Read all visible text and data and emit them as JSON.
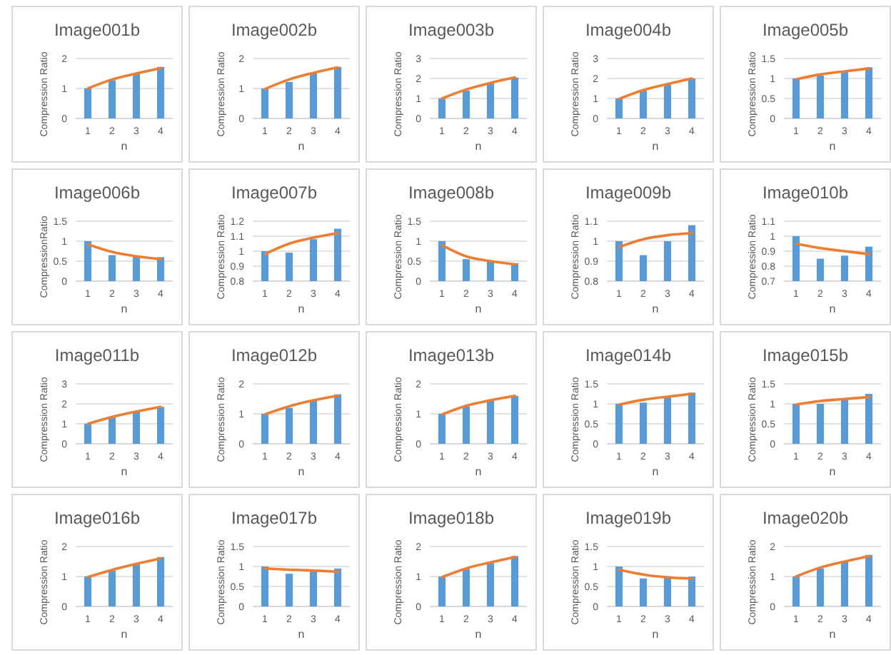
{
  "chart_data": [
    {
      "type": "bar",
      "title": "Image001b",
      "xlabel": "n",
      "ylabel": "Compression Ratio",
      "categories": [
        "1",
        "2",
        "3",
        "4"
      ],
      "ylim": [
        0,
        2
      ],
      "yticks": [
        0,
        1,
        2
      ],
      "grid": "y",
      "series": [
        {
          "color": "#5b9bd5",
          "values": [
            1,
            1.27,
            1.5,
            1.72
          ]
        },
        {
          "type": "line",
          "color": "#ed7d31",
          "x": [
            "1",
            "2",
            "3",
            "4"
          ],
          "values": [
            1.0,
            1.3,
            1.5,
            1.68
          ]
        }
      ]
    },
    {
      "type": "bar",
      "title": "Image002b",
      "xlabel": "n",
      "ylabel": "Compression Ratio",
      "categories": [
        "1",
        "2",
        "3",
        "4"
      ],
      "ylim": [
        0,
        2
      ],
      "yticks": [
        0,
        1,
        2
      ],
      "grid": "y",
      "series": [
        {
          "color": "#5b9bd5",
          "values": [
            1,
            1.22,
            1.5,
            1.72
          ]
        },
        {
          "type": "line",
          "color": "#ed7d31",
          "x": [
            "1",
            "2",
            "3",
            "4"
          ],
          "values": [
            0.98,
            1.3,
            1.52,
            1.7
          ]
        }
      ]
    },
    {
      "type": "bar",
      "title": "Image003b",
      "xlabel": "n",
      "ylabel": "Compression Ratio",
      "categories": [
        "1",
        "2",
        "3",
        "4"
      ],
      "ylim": [
        0,
        3
      ],
      "yticks": [
        0,
        1,
        2,
        3
      ],
      "grid": "y",
      "series": [
        {
          "color": "#5b9bd5",
          "values": [
            1,
            1.4,
            1.75,
            2.05
          ]
        },
        {
          "type": "line",
          "color": "#ed7d31",
          "x": [
            "1",
            "2",
            "3",
            "4"
          ],
          "values": [
            1.0,
            1.45,
            1.78,
            2.05
          ]
        }
      ]
    },
    {
      "type": "bar",
      "title": "Image004b",
      "xlabel": "n",
      "ylabel": "Compression Ratio",
      "categories": [
        "1",
        "2",
        "3",
        "4"
      ],
      "ylim": [
        0,
        3
      ],
      "yticks": [
        0,
        1,
        2,
        3
      ],
      "grid": "y",
      "series": [
        {
          "color": "#5b9bd5",
          "values": [
            1,
            1.4,
            1.7,
            2.0
          ]
        },
        {
          "type": "line",
          "color": "#ed7d31",
          "x": [
            "1",
            "2",
            "3",
            "4"
          ],
          "values": [
            0.98,
            1.42,
            1.72,
            2.0
          ]
        }
      ]
    },
    {
      "type": "bar",
      "title": "Image005b",
      "xlabel": "n",
      "ylabel": "Compression Ratio",
      "categories": [
        "1",
        "2",
        "3",
        "4"
      ],
      "ylim": [
        0,
        1.5
      ],
      "yticks": [
        0,
        0.5,
        1,
        1.5
      ],
      "grid": "y",
      "series": [
        {
          "color": "#5b9bd5",
          "values": [
            1,
            1.07,
            1.17,
            1.28
          ]
        },
        {
          "type": "line",
          "color": "#ed7d31",
          "x": [
            "1",
            "2",
            "3",
            "4"
          ],
          "values": [
            0.98,
            1.1,
            1.18,
            1.25
          ]
        }
      ]
    },
    {
      "type": "bar",
      "title": "Image006b",
      "xlabel": "n",
      "ylabel": "CompressionRatio",
      "categories": [
        "1",
        "2",
        "3",
        "4"
      ],
      "ylim": [
        0,
        1.5
      ],
      "yticks": [
        0,
        0.5,
        1,
        1.5
      ],
      "grid": "y",
      "series": [
        {
          "color": "#5b9bd5",
          "values": [
            1,
            0.65,
            0.62,
            0.6
          ]
        },
        {
          "type": "line",
          "color": "#ed7d31",
          "x": [
            "1",
            "2",
            "3",
            "4"
          ],
          "values": [
            0.92,
            0.73,
            0.62,
            0.55
          ]
        }
      ]
    },
    {
      "type": "bar",
      "title": "Image007b",
      "xlabel": "n",
      "ylabel": "Compression Ratio",
      "categories": [
        "1",
        "2",
        "3",
        "4"
      ],
      "ylim": [
        0.8,
        1.2
      ],
      "yticks": [
        0.8,
        0.9,
        1,
        1.1,
        1.2
      ],
      "grid": "y",
      "series": [
        {
          "color": "#5b9bd5",
          "values": [
            1.0,
            0.99,
            1.08,
            1.15
          ]
        },
        {
          "type": "line",
          "color": "#ed7d31",
          "x": [
            "1",
            "2",
            "3",
            "4"
          ],
          "values": [
            0.98,
            1.05,
            1.09,
            1.12
          ]
        }
      ]
    },
    {
      "type": "bar",
      "title": "Image008b",
      "xlabel": "n",
      "ylabel": "Compression Ratio",
      "categories": [
        "1",
        "2",
        "3",
        "4"
      ],
      "ylim": [
        0,
        1.5
      ],
      "yticks": [
        0,
        0.5,
        1,
        1.5
      ],
      "grid": "y",
      "series": [
        {
          "color": "#5b9bd5",
          "values": [
            1,
            0.55,
            0.5,
            0.45
          ]
        },
        {
          "type": "line",
          "color": "#ed7d31",
          "x": [
            "1",
            "2",
            "3",
            "4"
          ],
          "values": [
            0.9,
            0.62,
            0.5,
            0.42
          ]
        }
      ]
    },
    {
      "type": "bar",
      "title": "Image009b",
      "xlabel": "n",
      "ylabel": "Compression Ratio",
      "categories": [
        "1",
        "2",
        "3",
        "4"
      ],
      "ylim": [
        0.8,
        1.1
      ],
      "yticks": [
        0.8,
        0.9,
        1,
        1.1
      ],
      "grid": "y",
      "series": [
        {
          "color": "#5b9bd5",
          "values": [
            1.0,
            0.93,
            1.0,
            1.08
          ]
        },
        {
          "type": "line",
          "color": "#ed7d31",
          "x": [
            "1",
            "2",
            "3",
            "4"
          ],
          "values": [
            0.97,
            1.01,
            1.03,
            1.04
          ]
        }
      ]
    },
    {
      "type": "bar",
      "title": "Image010b",
      "xlabel": "n",
      "ylabel": "Compression Ratio",
      "categories": [
        "1",
        "2",
        "3",
        "4"
      ],
      "ylim": [
        0.7,
        1.1
      ],
      "yticks": [
        0.7,
        0.8,
        0.9,
        1,
        1.1
      ],
      "grid": "y",
      "series": [
        {
          "color": "#5b9bd5",
          "values": [
            1.0,
            0.85,
            0.87,
            0.93
          ]
        },
        {
          "type": "line",
          "color": "#ed7d31",
          "x": [
            "1",
            "2",
            "3",
            "4"
          ],
          "values": [
            0.95,
            0.92,
            0.9,
            0.88
          ]
        }
      ]
    },
    {
      "type": "bar",
      "title": "Image011b",
      "xlabel": "n",
      "ylabel": "Compression Ratio",
      "categories": [
        "1",
        "2",
        "3",
        "4"
      ],
      "ylim": [
        0,
        3
      ],
      "yticks": [
        0,
        1,
        2,
        3
      ],
      "grid": "y",
      "series": [
        {
          "color": "#5b9bd5",
          "values": [
            1,
            1.35,
            1.6,
            1.85
          ]
        },
        {
          "type": "line",
          "color": "#ed7d31",
          "x": [
            "1",
            "2",
            "3",
            "4"
          ],
          "values": [
            1.0,
            1.35,
            1.62,
            1.85
          ]
        }
      ]
    },
    {
      "type": "bar",
      "title": "Image012b",
      "xlabel": "n",
      "ylabel": "Compression Ratio",
      "categories": [
        "1",
        "2",
        "3",
        "4"
      ],
      "ylim": [
        0,
        2
      ],
      "yticks": [
        0,
        1,
        2
      ],
      "grid": "y",
      "series": [
        {
          "color": "#5b9bd5",
          "values": [
            1,
            1.2,
            1.45,
            1.65
          ]
        },
        {
          "type": "line",
          "color": "#ed7d31",
          "x": [
            "1",
            "2",
            "3",
            "4"
          ],
          "values": [
            0.98,
            1.25,
            1.45,
            1.6
          ]
        }
      ]
    },
    {
      "type": "bar",
      "title": "Image013b",
      "xlabel": "n",
      "ylabel": "Compression Ratio",
      "categories": [
        "1",
        "2",
        "3",
        "4"
      ],
      "ylim": [
        0,
        2
      ],
      "yticks": [
        0,
        1,
        2
      ],
      "grid": "y",
      "series": [
        {
          "color": "#5b9bd5",
          "values": [
            1,
            1.25,
            1.45,
            1.6
          ]
        },
        {
          "type": "line",
          "color": "#ed7d31",
          "x": [
            "1",
            "2",
            "3",
            "4"
          ],
          "values": [
            0.98,
            1.27,
            1.45,
            1.6
          ]
        }
      ]
    },
    {
      "type": "bar",
      "title": "Image014b",
      "xlabel": "n",
      "ylabel": "Compression Ratio",
      "categories": [
        "1",
        "2",
        "3",
        "4"
      ],
      "ylim": [
        0,
        1.5
      ],
      "yticks": [
        0,
        0.5,
        1,
        1.5
      ],
      "grid": "y",
      "series": [
        {
          "color": "#5b9bd5",
          "values": [
            1,
            1.03,
            1.17,
            1.28
          ]
        },
        {
          "type": "line",
          "color": "#ed7d31",
          "x": [
            "1",
            "2",
            "3",
            "4"
          ],
          "values": [
            0.98,
            1.1,
            1.18,
            1.25
          ]
        }
      ]
    },
    {
      "type": "bar",
      "title": "Image015b",
      "xlabel": "n",
      "ylabel": "Compression Ratio",
      "categories": [
        "1",
        "2",
        "3",
        "4"
      ],
      "ylim": [
        0,
        1.5
      ],
      "yticks": [
        0,
        0.5,
        1,
        1.5
      ],
      "grid": "y",
      "series": [
        {
          "color": "#5b9bd5",
          "values": [
            1,
            1.0,
            1.12,
            1.25
          ]
        },
        {
          "type": "line",
          "color": "#ed7d31",
          "x": [
            "1",
            "2",
            "3",
            "4"
          ],
          "values": [
            0.98,
            1.07,
            1.12,
            1.17
          ]
        }
      ]
    },
    {
      "type": "bar",
      "title": "Image016b",
      "xlabel": "n",
      "ylabel": "Compression Ratio",
      "categories": [
        "1",
        "2",
        "3",
        "4"
      ],
      "ylim": [
        0,
        2
      ],
      "yticks": [
        0,
        1,
        2
      ],
      "grid": "y",
      "series": [
        {
          "color": "#5b9bd5",
          "values": [
            1,
            1.2,
            1.4,
            1.65
          ]
        },
        {
          "type": "line",
          "color": "#ed7d31",
          "x": [
            "1",
            "2",
            "3",
            "4"
          ],
          "values": [
            0.98,
            1.22,
            1.42,
            1.6
          ]
        }
      ]
    },
    {
      "type": "bar",
      "title": "Image017b",
      "xlabel": "n",
      "ylabel": "Compression Ratio",
      "categories": [
        "1",
        "2",
        "3",
        "4"
      ],
      "ylim": [
        0,
        1.5
      ],
      "yticks": [
        0,
        0.5,
        1,
        1.5
      ],
      "grid": "y",
      "series": [
        {
          "color": "#5b9bd5",
          "values": [
            1,
            0.82,
            0.9,
            0.95
          ]
        },
        {
          "type": "line",
          "color": "#ed7d31",
          "x": [
            "1",
            "2",
            "3",
            "4"
          ],
          "values": [
            0.95,
            0.92,
            0.9,
            0.87
          ]
        }
      ]
    },
    {
      "type": "bar",
      "title": "Image018b",
      "xlabel": "n",
      "ylabel": "Compression Ratio",
      "categories": [
        "1",
        "2",
        "3",
        "4"
      ],
      "ylim": [
        0,
        2
      ],
      "yticks": [
        0,
        1,
        2
      ],
      "grid": "y",
      "series": [
        {
          "color": "#5b9bd5",
          "values": [
            1,
            1.25,
            1.45,
            1.68
          ]
        },
        {
          "type": "line",
          "color": "#ed7d31",
          "x": [
            "1",
            "2",
            "3",
            "4"
          ],
          "values": [
            0.98,
            1.27,
            1.47,
            1.65
          ]
        }
      ]
    },
    {
      "type": "bar",
      "title": "Image019b",
      "xlabel": "n",
      "ylabel": "Compression Ratio",
      "categories": [
        "1",
        "2",
        "3",
        "4"
      ],
      "ylim": [
        0,
        1.5
      ],
      "yticks": [
        0,
        0.5,
        1,
        1.5
      ],
      "grid": "y",
      "series": [
        {
          "color": "#5b9bd5",
          "values": [
            1,
            0.7,
            0.72,
            0.75
          ]
        },
        {
          "type": "line",
          "color": "#ed7d31",
          "x": [
            "1",
            "2",
            "3",
            "4"
          ],
          "values": [
            0.92,
            0.8,
            0.73,
            0.7
          ]
        }
      ]
    },
    {
      "type": "bar",
      "title": "Image020b",
      "xlabel": "n",
      "ylabel": "Compression Ratio",
      "categories": [
        "1",
        "2",
        "3",
        "4"
      ],
      "ylim": [
        0,
        2
      ],
      "yticks": [
        0,
        1,
        2
      ],
      "grid": "y",
      "series": [
        {
          "color": "#5b9bd5",
          "values": [
            1,
            1.27,
            1.5,
            1.72
          ]
        },
        {
          "type": "line",
          "color": "#ed7d31",
          "x": [
            "1",
            "2",
            "3",
            "4"
          ],
          "values": [
            1.0,
            1.3,
            1.5,
            1.68
          ]
        }
      ]
    }
  ]
}
